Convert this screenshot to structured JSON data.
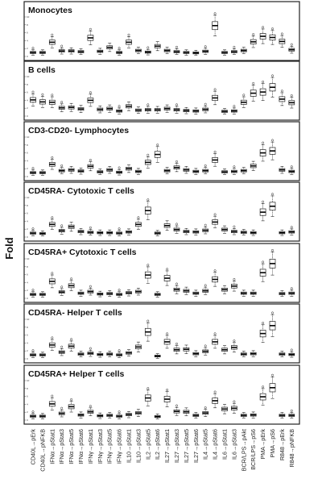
{
  "chart_data": {
    "type": "boxplot",
    "ylabel": "Fold",
    "categories": [
      "CD40L→pErk",
      "CD40L→pNFKB",
      "IFNα→pStat1",
      "IFNα→pStat3",
      "IFNα→pStat5",
      "IFNα→pStat6",
      "IFNγ→pStat1",
      "IFNγ→pStat3",
      "IFNγ→pStat5",
      "IFNγ→pStat6",
      "IL10→pStat1",
      "IL10→pStat3",
      "IL2→pStat5",
      "IL2→pStat6",
      "IL27→pStat1",
      "IL27→pStat3",
      "IL27→pStat5",
      "IL27→pStat6",
      "IL4→pStat5",
      "IL4→pStat6",
      "IL6→pStat1",
      "IL6→pStat3",
      "BCR/LPS→pAkt",
      "BCR/LPS→pS6",
      "PMA→pErk",
      "PMA→pS6",
      "R848→pErk",
      "R848→pNFKB"
    ],
    "ylim": [
      0,
      10
    ],
    "yticks": [
      0,
      2,
      4,
      6,
      8,
      10
    ],
    "panels": [
      {
        "title": "Monocytes",
        "medians": [
          1,
          1,
          3.6,
          1.4,
          1.4,
          1.2,
          4.7,
          1.3,
          2.3,
          1,
          3.6,
          1.5,
          1.1,
          2.6,
          1.5,
          1.2,
          1,
          0.9,
          1.3,
          7.8,
          1,
          1.2,
          1.5,
          3.7,
          5.1,
          4.8,
          3.8,
          1.7
        ]
      },
      {
        "title": "B cells",
        "medians": [
          4.1,
          3.6,
          3.5,
          2.1,
          2.2,
          1.8,
          4,
          1.7,
          1.9,
          1.3,
          2.5,
          1.5,
          1.6,
          1.6,
          1.9,
          1.6,
          1.4,
          1.3,
          1.7,
          4.6,
          1.2,
          1.3,
          3.5,
          5.8,
          6.1,
          7.3,
          4.3,
          3.4
        ]
      },
      {
        "title": "CD3-CD20- Lymphocytes",
        "medians": [
          1,
          1,
          3.1,
          1.5,
          1.7,
          1.4,
          2.6,
          1.2,
          1.7,
          1.1,
          2,
          1.3,
          3.6,
          5.6,
          1.5,
          2.3,
          1.7,
          1.3,
          1.5,
          4.2,
          1.2,
          1.3,
          1.5,
          2.7,
          6,
          6.5,
          1.7,
          1.3
        ]
      },
      {
        "title": "CD45RA- Cytotoxic T cells",
        "medians": [
          1,
          0.9,
          3.2,
          1.6,
          2.6,
          1.4,
          1.2,
          1.1,
          1.1,
          1,
          1.3,
          3.2,
          6.7,
          1,
          2.9,
          1.9,
          1.4,
          1.3,
          1.7,
          3.8,
          1.9,
          1.4,
          1.2,
          1.1,
          6.3,
          7.8,
          1.1,
          1.3
        ]
      },
      {
        "title": "CD45RA+ Cytotoxic T cells",
        "medians": [
          1,
          1,
          4.3,
          1.6,
          3.2,
          1.3,
          1.7,
          1.1,
          1.2,
          1,
          1.4,
          1.7,
          5.9,
          1,
          5.1,
          2.2,
          1.9,
          1.3,
          1.9,
          4.8,
          2.2,
          3.1,
          1.3,
          1.3,
          6.5,
          8.8,
          1.2,
          1.3
        ]
      },
      {
        "title": "CD45RA- Helper T cells",
        "medians": [
          1,
          1,
          3.5,
          1.7,
          3.2,
          1.2,
          1.4,
          1.1,
          1.2,
          1,
          1.5,
          3,
          6.8,
          0.7,
          4.3,
          2.3,
          2.4,
          1.3,
          1.9,
          4.3,
          2.3,
          2.9,
          1.2,
          1.3,
          6.4,
          8.4,
          1.2,
          1.1
        ]
      },
      {
        "title": "CD45RA+ Helper T cells",
        "medians": [
          1,
          1,
          4.1,
          1.7,
          3.4,
          1.3,
          2.1,
          1.1,
          1.2,
          1,
          1.4,
          1.8,
          5.6,
          0.9,
          5.3,
          2.2,
          2.1,
          1.2,
          1.8,
          4.9,
          2.8,
          3,
          1.2,
          1.3,
          5.9,
          8.2,
          1.2,
          1.2
        ]
      }
    ],
    "legend": "none",
    "grid": false
  }
}
